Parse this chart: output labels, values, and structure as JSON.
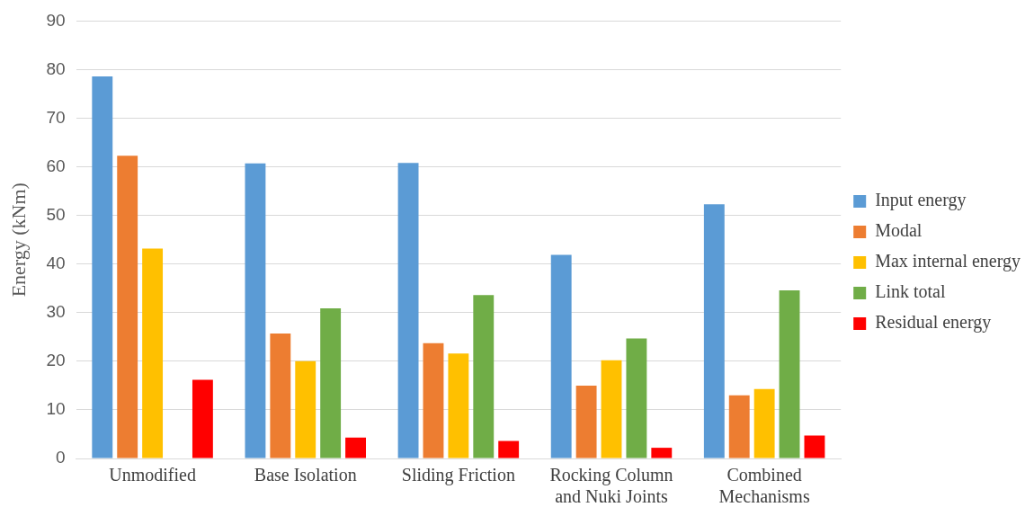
{
  "chart_data": {
    "type": "bar",
    "ylabel": "Energy (kNm)",
    "categories": [
      "Unmodified",
      "Base Isolation",
      "Sliding Friction",
      "Rocking Column and Nuki Joints",
      "Combined Mechanisms"
    ],
    "series": [
      {
        "name": "Input energy",
        "color": "#5b9bd5",
        "values": [
          78.6,
          60.7,
          60.8,
          41.9,
          52.3
        ]
      },
      {
        "name": "Modal",
        "color": "#ed7d31",
        "values": [
          62.3,
          25.7,
          23.7,
          15.0,
          13.0
        ]
      },
      {
        "name": "Max internal energy",
        "color": "#ffc000",
        "values": [
          43.2,
          20.0,
          21.6,
          20.2,
          14.3
        ]
      },
      {
        "name": "Link total",
        "color": "#70ad47",
        "values": [
          null,
          30.9,
          33.6,
          24.7,
          34.6
        ]
      },
      {
        "name": "Residual energy",
        "color": "#ff0000",
        "values": [
          16.2,
          4.3,
          3.6,
          2.2,
          4.7
        ]
      }
    ],
    "ylim": [
      0,
      90
    ],
    "yticks": [
      0,
      10,
      20,
      30,
      40,
      50,
      60,
      70,
      80,
      90
    ],
    "grid": "y",
    "legend": "right"
  }
}
